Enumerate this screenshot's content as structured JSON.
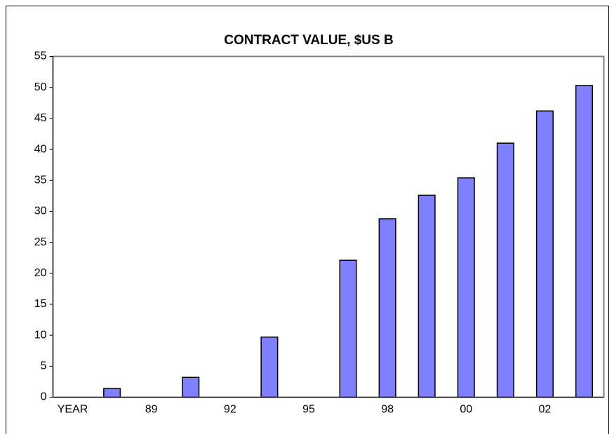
{
  "chart_data": {
    "type": "bar",
    "title": "CONTRACT VALUE, $US B",
    "categories": [
      "YEAR",
      null,
      "89",
      null,
      "92",
      null,
      "95",
      null,
      "98",
      null,
      "00",
      null,
      "02",
      null
    ],
    "values": [
      null,
      1.4,
      null,
      3.2,
      null,
      9.7,
      null,
      22.1,
      28.8,
      32.6,
      35.4,
      41.0,
      46.2,
      50.3
    ],
    "color": "#8080ff",
    "ylim": [
      0,
      55
    ],
    "yticks": [
      0,
      5,
      10,
      15,
      20,
      25,
      30,
      35,
      40,
      45,
      50,
      55
    ],
    "grid": false
  }
}
